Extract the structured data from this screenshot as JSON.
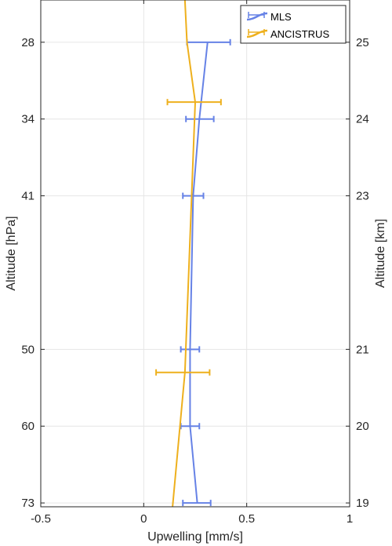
{
  "chart_data": {
    "type": "line",
    "orientation": "vertical-profile",
    "xlabel": "Upwelling [mm/s]",
    "ylabel_left": "Altitude [hPa]",
    "ylabel_right": "Altitude [km]",
    "xlim": [
      -0.5,
      1
    ],
    "x_ticks": [
      "-0.5",
      "0",
      "0.5",
      "1"
    ],
    "ylim_km": [
      18.95,
      25.55
    ],
    "y_ticks_left": [
      {
        "label": "28",
        "km": 25
      },
      {
        "label": "34",
        "km": 24
      },
      {
        "label": "41",
        "km": 23
      },
      {
        "label": "50",
        "km": 21
      },
      {
        "label": "60",
        "km": 20
      },
      {
        "label": "73",
        "km": 19
      }
    ],
    "y_ticks_right": [
      "25",
      "24",
      "23",
      "21",
      "20",
      "19"
    ],
    "grid": true,
    "legend_position": "top-right",
    "series": [
      {
        "name": "MLS",
        "color": "#6682e6",
        "points": [
          {
            "km": 25,
            "x": 0.31,
            "err_low": 0.21,
            "err_high": 0.42
          },
          {
            "km": 24,
            "x": 0.27,
            "err_low": 0.205,
            "err_high": 0.34
          },
          {
            "km": 23,
            "x": 0.24,
            "err_low": 0.19,
            "err_high": 0.29
          },
          {
            "km": 21,
            "x": 0.225,
            "err_low": 0.18,
            "err_high": 0.27
          },
          {
            "km": 20,
            "x": 0.225,
            "err_low": 0.18,
            "err_high": 0.27
          },
          {
            "km": 19,
            "x": 0.26,
            "err_low": 0.19,
            "err_high": 0.325
          }
        ]
      },
      {
        "name": "ANCISTRUS",
        "color": "#eeb01d",
        "line": [
          {
            "km": 25.55,
            "x": 0.2
          },
          {
            "km": 25,
            "x": 0.21
          },
          {
            "km": 24.22,
            "x": 0.25
          },
          {
            "km": 20.7,
            "x": 0.2
          },
          {
            "km": 18.95,
            "x": 0.14
          }
        ],
        "errorbars": [
          {
            "km": 24.22,
            "x": 0.245,
            "err_low": 0.115,
            "err_high": 0.375
          },
          {
            "km": 20.7,
            "x": 0.19,
            "err_low": 0.06,
            "err_high": 0.32
          }
        ]
      }
    ]
  }
}
